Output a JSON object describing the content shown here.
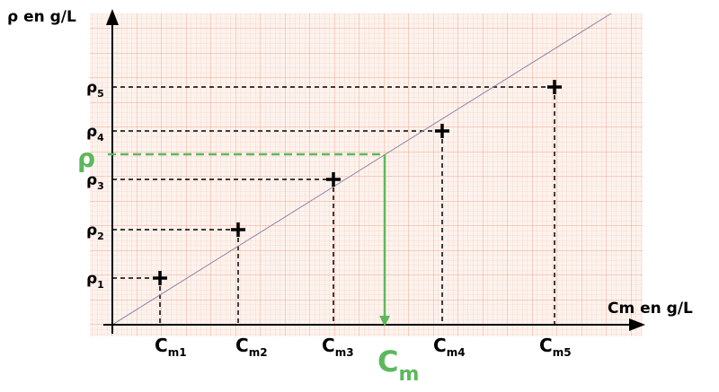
{
  "axes": {
    "y_label": "ρ  en g/L",
    "x_label": "Cm en g/L"
  },
  "y_labels": [
    {
      "base": "ρ",
      "sub": "1"
    },
    {
      "base": "ρ",
      "sub": "2"
    },
    {
      "base": "ρ",
      "sub": "3"
    },
    {
      "base": "ρ",
      "sub": "4"
    },
    {
      "base": "ρ",
      "sub": "5"
    }
  ],
  "x_labels": [
    {
      "base": "C",
      "sub": "m1"
    },
    {
      "base": "C",
      "sub": "m2"
    },
    {
      "base": "C",
      "sub": "m3"
    },
    {
      "base": "C",
      "sub": "m4"
    },
    {
      "base": "C",
      "sub": "m5"
    }
  ],
  "reading": {
    "y": "ρ",
    "x": {
      "base": "C",
      "sub": "m"
    }
  }
}
